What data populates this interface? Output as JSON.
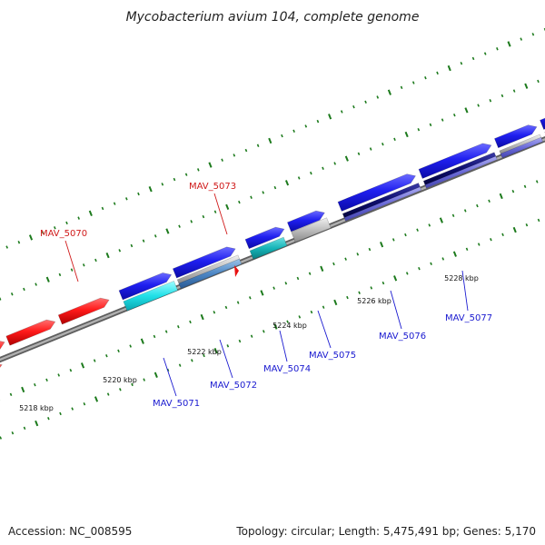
{
  "title": "Mycobacterium avium 104, complete genome",
  "footer": {
    "accession": "Accession: NC_008595",
    "summary": "Topology: circular; Length: 5,475,491 bp; Genes: 5,170"
  },
  "colors": {
    "forward_gene": "#1f1ff0",
    "reverse_gene": "#ff1a1a",
    "backbone": "#8c8c8c",
    "tick": "#1c7a1c",
    "label_forward": "#1a1ad0",
    "label_reverse": "#d01a1a"
  },
  "scale_labels": [
    {
      "text": "5218 kbp",
      "kbp": 5218
    },
    {
      "text": "5220 kbp",
      "kbp": 5220
    },
    {
      "text": "5222 kbp",
      "kbp": 5222
    },
    {
      "text": "5224 kbp",
      "kbp": 5224
    },
    {
      "text": "5226 kbp",
      "kbp": 5226
    },
    {
      "text": "5228 kbp",
      "kbp": 5228
    }
  ],
  "gene_labels": [
    {
      "text": "MAV_5070",
      "strand": "reverse"
    },
    {
      "text": "MAV_5073",
      "strand": "reverse"
    },
    {
      "text": "MAV_5071",
      "strand": "forward"
    },
    {
      "text": "MAV_5072",
      "strand": "forward"
    },
    {
      "text": "MAV_5074",
      "strand": "forward"
    },
    {
      "text": "MAV_5075",
      "strand": "forward"
    },
    {
      "text": "MAV_5076",
      "strand": "forward"
    },
    {
      "text": "MAV_5077",
      "strand": "forward"
    }
  ]
}
